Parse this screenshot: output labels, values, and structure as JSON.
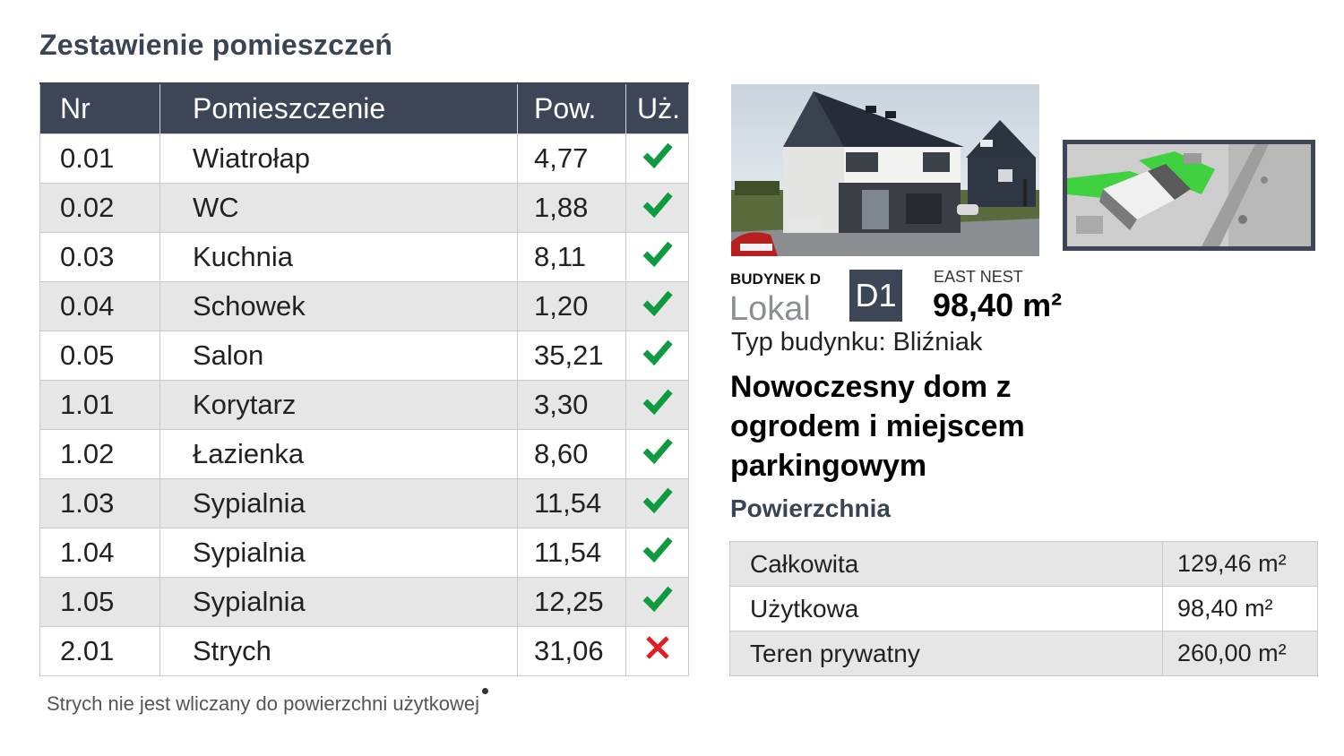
{
  "page": {
    "title": "Zestawienie pomieszczeń"
  },
  "rooms_table": {
    "headers": [
      "Nr",
      "Pomieszczenie",
      "Pow.",
      "Uż."
    ],
    "rows": [
      {
        "nr": "0.01",
        "name": "Wiatrołap",
        "area": "4,77",
        "usable": true
      },
      {
        "nr": "0.02",
        "name": "WC",
        "area": "1,88",
        "usable": true
      },
      {
        "nr": "0.03",
        "name": "Kuchnia",
        "area": "8,11",
        "usable": true
      },
      {
        "nr": "0.04",
        "name": "Schowek",
        "area": "1,20",
        "usable": true
      },
      {
        "nr": "0.05",
        "name": "Salon",
        "area": "35,21",
        "usable": true
      },
      {
        "nr": "1.01",
        "name": "Korytarz",
        "area": "3,30",
        "usable": true
      },
      {
        "nr": "1.02",
        "name": "Łazienka",
        "area": "8,60",
        "usable": true
      },
      {
        "nr": "1.03",
        "name": "Sypialnia",
        "area": "11,54",
        "usable": true
      },
      {
        "nr": "1.04",
        "name": "Sypialnia",
        "area": "11,54",
        "usable": true
      },
      {
        "nr": "1.05",
        "name": "Sypialnia",
        "area": "12,25",
        "usable": true
      },
      {
        "nr": "2.01",
        "name": "Strych",
        "area": "31,06",
        "usable": false
      }
    ],
    "footnote": "Strych nie jest wliczany do powierzchni użytkowej"
  },
  "icons": {
    "yes": "checkmark-icon",
    "no": "cross-icon"
  },
  "colors": {
    "header_bg": "#3d4657",
    "check_green": "#0e9a3e",
    "cross_red": "#e31b23",
    "map_highlight": "#3fd13f"
  },
  "building": {
    "label": "BUDYNEK D",
    "unit_word": "Lokal",
    "unit_code": "D1",
    "estate": "EAST NEST",
    "area": "98,40 m²",
    "type_line": "Typ budynku: Bliźniak",
    "headline": "Nowoczesny dom z ogrodem i miejscem parkingowym"
  },
  "area_section": {
    "title": "Powierzchnia",
    "rows": [
      {
        "label": "Całkowita",
        "value": "129,46 m²"
      },
      {
        "label": "Użytkowa",
        "value": "98,40 m²"
      },
      {
        "label": "Teren prywatny",
        "value": "260,00 m²"
      }
    ]
  }
}
